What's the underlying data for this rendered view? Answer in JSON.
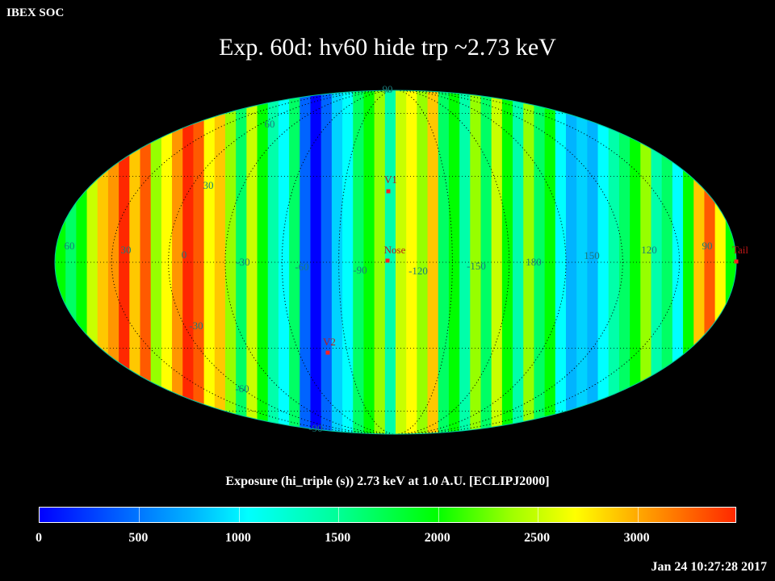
{
  "header": {
    "soc_label": "IBEX SOC"
  },
  "title": "Exp.   60d: hv60 hide trp ~2.73 keV",
  "map": {
    "projection": "aitoff",
    "grid": true,
    "longitude_labels": [
      "60",
      "30",
      "0",
      "-30",
      "-60",
      "-90",
      "-120",
      "-150",
      "180",
      "150",
      "120",
      "90"
    ],
    "latitude_labels": [
      "90",
      "60",
      "30",
      "-30",
      "-60",
      "-90"
    ],
    "markers": [
      {
        "label": "V1"
      },
      {
        "label": "Nose"
      },
      {
        "label": "V2"
      },
      {
        "label": "Tail"
      }
    ],
    "colors": {
      "marker": "#ff2020",
      "grid_label": "#1a7a7a",
      "marker_label": "#c01818"
    }
  },
  "colorbar": {
    "title": "Exposure (hi_triple (s))  2.73 keV at 1.0 A.U. [ECLIPJ2000]",
    "tick_labels": [
      "0",
      "500",
      "1000",
      "1500",
      "2000",
      "2500",
      "3000"
    ],
    "min": 0,
    "max": 3500
  },
  "timestamp": "Jan 24 10:27:28 2017"
}
